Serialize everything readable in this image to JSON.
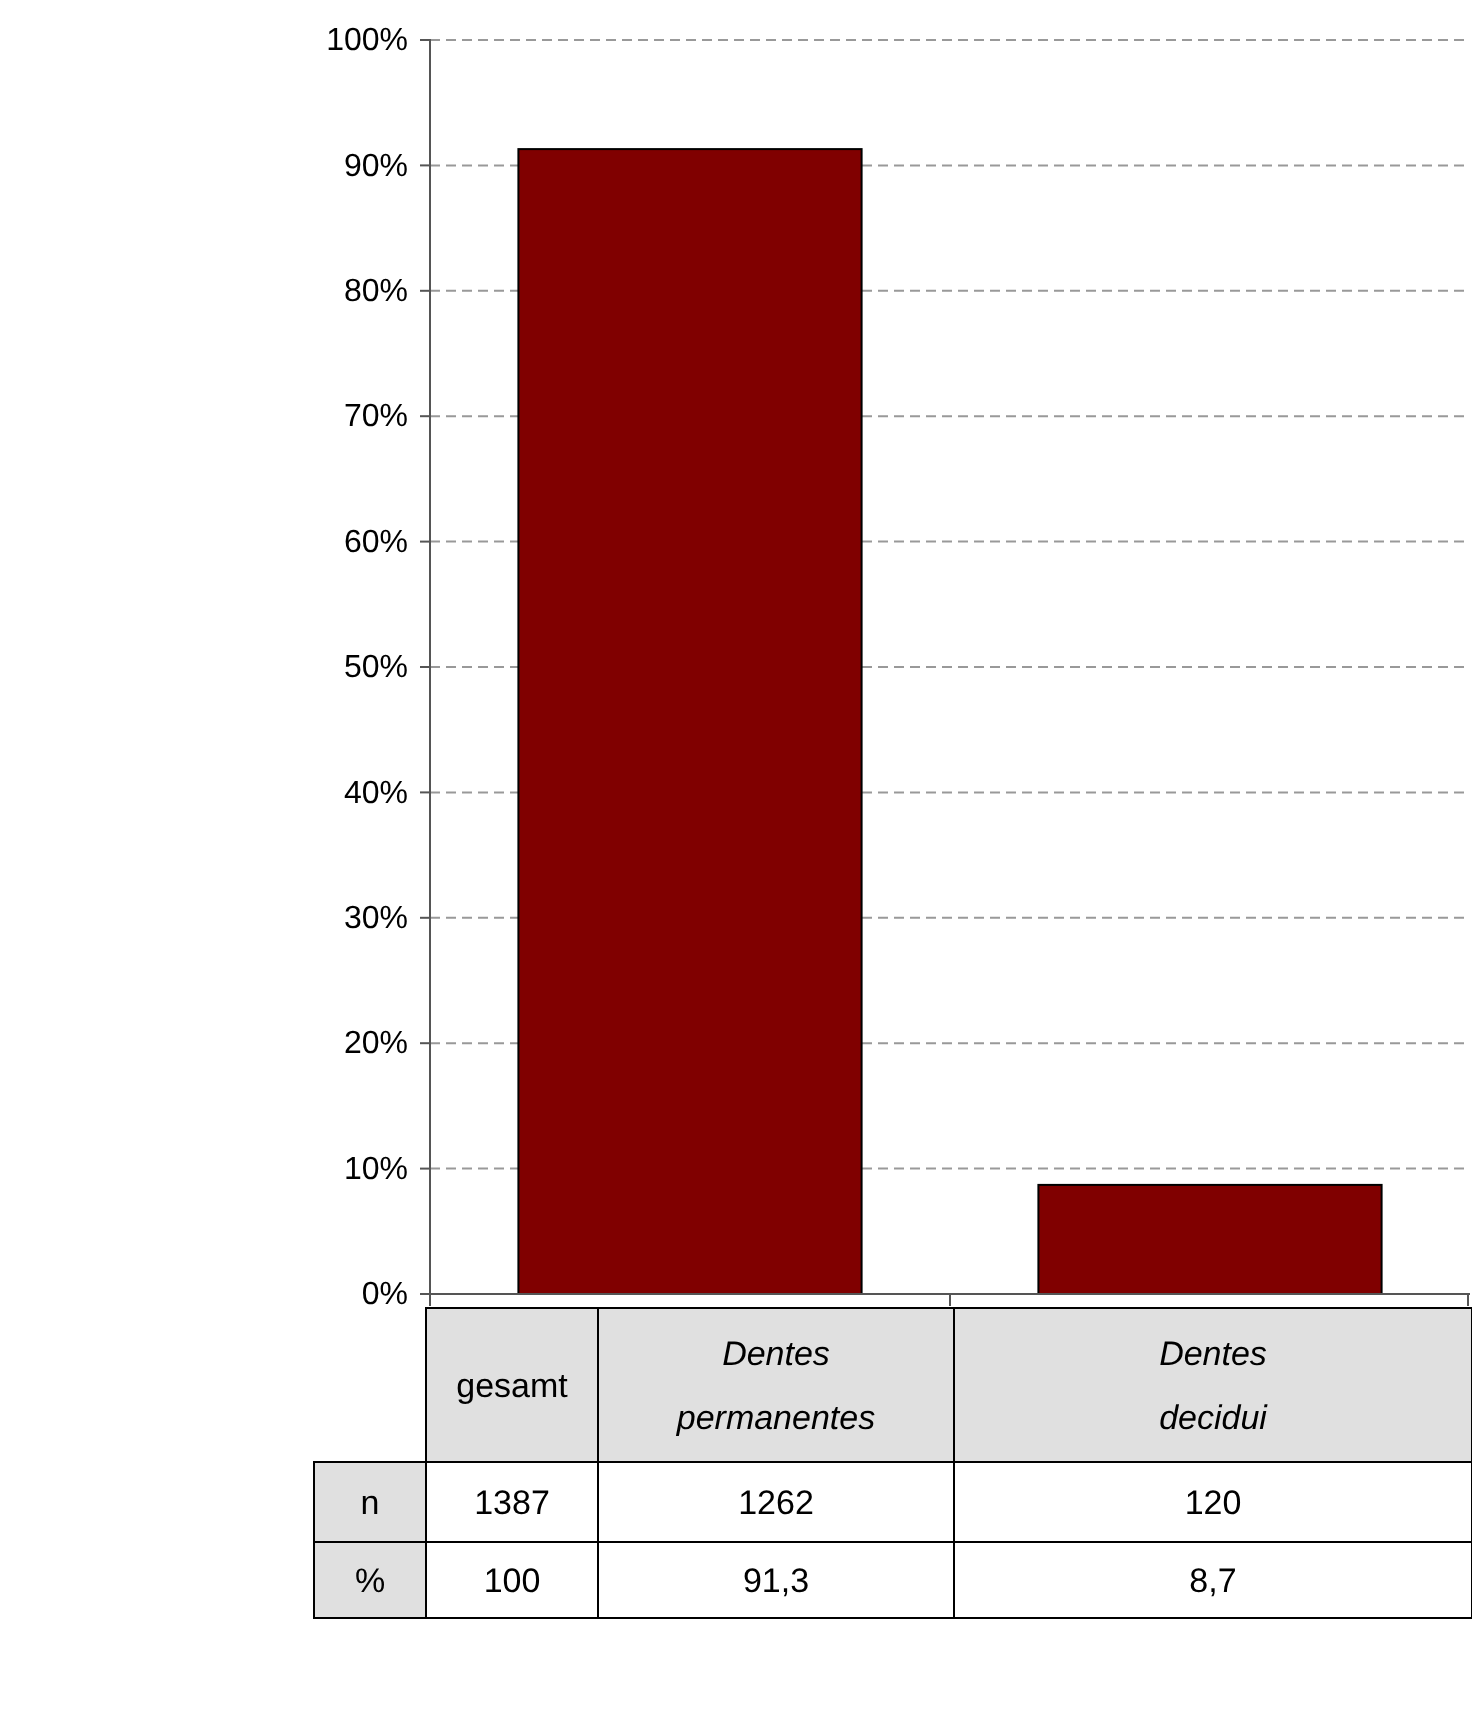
{
  "chart_data": {
    "type": "bar",
    "categories": [
      "Dentes permanentes",
      "Dentes decidui"
    ],
    "values": [
      91.3,
      8.7
    ],
    "value_labels": [
      "91,3",
      "8,7"
    ],
    "color": "#800000",
    "ylim": [
      0,
      100
    ],
    "yticks": [
      {
        "value": 0,
        "label": "0%"
      },
      {
        "value": 10,
        "label": "10%"
      },
      {
        "value": 20,
        "label": "20%"
      },
      {
        "value": 30,
        "label": "30%"
      },
      {
        "value": 40,
        "label": "40%"
      },
      {
        "value": 50,
        "label": "50%"
      },
      {
        "value": 60,
        "label": "60%"
      },
      {
        "value": 70,
        "label": "70%"
      },
      {
        "value": 80,
        "label": "80%"
      },
      {
        "value": 90,
        "label": "90%"
      },
      {
        "value": 100,
        "label": "100%"
      }
    ],
    "grid": "y",
    "annotations": [
      "gesamt",
      "n",
      "%",
      "1387",
      "1262",
      "120",
      "100"
    ]
  }
}
